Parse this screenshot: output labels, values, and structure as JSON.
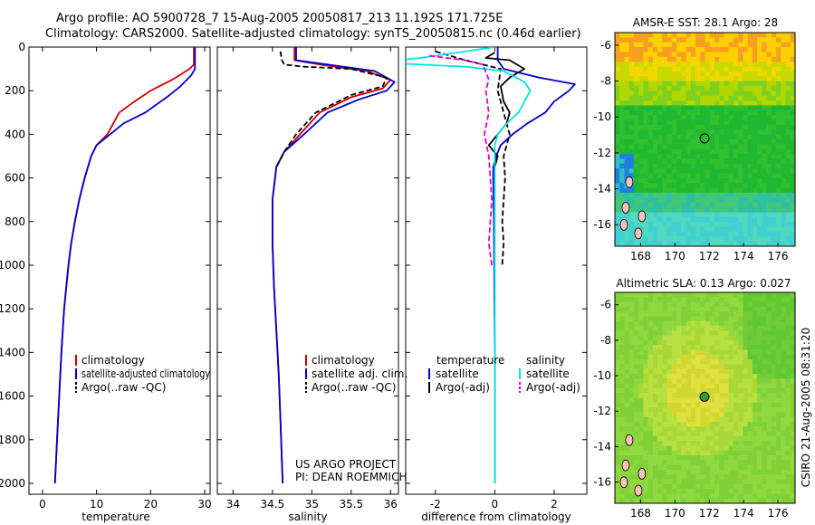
{
  "figure": {
    "title_line1": "Argo profile: AO 5900728_7 15-Aug-2005 20050817_213 11.192S 171.725E",
    "title_line2": "Climatology: CARS2000. Satellite-adjusted climatology: synTS_20050815.nc (0.46d earlier)",
    "side_label": "CSIRO 21-Aug-2005 08:31:20",
    "project_line1": "US ARGO PROJECT",
    "project_line2": "PI: DEAN ROEMMICH"
  },
  "colors": {
    "climatology": "#cc0000",
    "satellite": "#0000cc",
    "argo": "#000000",
    "salinity_satellite": "#00e5e5",
    "salinity_argo": "#dd00dd",
    "map_marker": "#000000"
  },
  "chart_data": [
    {
      "type": "line",
      "panel": "temperature",
      "xlabel": "temperature",
      "ylabel": "",
      "xlim": [
        -2.5,
        31
      ],
      "ylim": [
        2050,
        0
      ],
      "xticks": [
        0,
        10,
        20,
        30
      ],
      "yticks": [
        0,
        200,
        400,
        600,
        800,
        1000,
        1200,
        1400,
        1600,
        1800,
        2000
      ],
      "legend_position": "lower-center",
      "series": [
        {
          "name": "climatology",
          "color_key": "climatology",
          "style": "solid",
          "points": [
            [
              28.0,
              0
            ],
            [
              28.0,
              40
            ],
            [
              28.0,
              80
            ],
            [
              27.2,
              100
            ],
            [
              24.0,
              150
            ],
            [
              20.0,
              200
            ],
            [
              17.0,
              250
            ],
            [
              14.2,
              300
            ],
            [
              12.0,
              400
            ],
            [
              10.0,
              450
            ],
            [
              9.0,
              500
            ],
            [
              7.8,
              600
            ],
            [
              6.8,
              700
            ],
            [
              6.0,
              800
            ],
            [
              5.3,
              900
            ],
            [
              4.8,
              1000
            ],
            [
              4.0,
              1200
            ],
            [
              3.5,
              1400
            ],
            [
              3.1,
              1600
            ],
            [
              2.7,
              1800
            ],
            [
              2.3,
              2000
            ]
          ]
        },
        {
          "name": "satellite-adjusted climatology",
          "color_key": "satellite",
          "style": "solid",
          "points": [
            [
              28.2,
              0
            ],
            [
              28.2,
              50
            ],
            [
              28.2,
              100
            ],
            [
              27.5,
              130
            ],
            [
              25.5,
              180
            ],
            [
              23.0,
              230
            ],
            [
              19.0,
              300
            ],
            [
              15.0,
              350
            ],
            [
              12.5,
              400
            ],
            [
              10.0,
              450
            ],
            [
              9.0,
              500
            ],
            [
              7.8,
              600
            ],
            [
              6.8,
              700
            ],
            [
              6.0,
              800
            ],
            [
              5.3,
              900
            ],
            [
              4.8,
              1000
            ],
            [
              4.0,
              1200
            ],
            [
              3.5,
              1400
            ],
            [
              3.1,
              1600
            ],
            [
              2.7,
              1800
            ],
            [
              2.3,
              2000
            ]
          ]
        },
        {
          "name": "Argo(..raw -QC)",
          "color_key": "argo",
          "style": "dashed",
          "points": []
        }
      ]
    },
    {
      "type": "line",
      "panel": "salinity",
      "xlabel": "salinity",
      "ylabel": "",
      "xlim": [
        33.8,
        36.1
      ],
      "ylim": [
        2050,
        0
      ],
      "xticks": [
        34,
        34.5,
        35,
        35.5,
        36
      ],
      "legend_position": "lower-center",
      "series": [
        {
          "name": "climatology",
          "color_key": "climatology",
          "style": "solid",
          "points": [
            [
              34.78,
              0
            ],
            [
              34.78,
              60
            ],
            [
              35.1,
              80
            ],
            [
              35.7,
              110
            ],
            [
              36.0,
              150
            ],
            [
              35.9,
              190
            ],
            [
              35.5,
              230
            ],
            [
              35.1,
              300
            ],
            [
              34.85,
              400
            ],
            [
              34.65,
              480
            ],
            [
              34.55,
              550
            ],
            [
              34.5,
              700
            ],
            [
              34.5,
              900
            ],
            [
              34.52,
              1100
            ],
            [
              34.55,
              1300
            ],
            [
              34.58,
              1500
            ],
            [
              34.6,
              1700
            ],
            [
              34.62,
              1900
            ],
            [
              34.63,
              2000
            ]
          ]
        },
        {
          "name": "satellite adj. clim.",
          "color_key": "satellite",
          "style": "solid",
          "points": [
            [
              34.8,
              0
            ],
            [
              34.8,
              60
            ],
            [
              35.2,
              80
            ],
            [
              35.8,
              110
            ],
            [
              36.05,
              160
            ],
            [
              35.95,
              200
            ],
            [
              35.6,
              240
            ],
            [
              35.2,
              300
            ],
            [
              34.9,
              400
            ],
            [
              34.65,
              480
            ],
            [
              34.55,
              550
            ],
            [
              34.5,
              700
            ],
            [
              34.5,
              900
            ],
            [
              34.52,
              1100
            ],
            [
              34.55,
              1300
            ],
            [
              34.58,
              1500
            ],
            [
              34.6,
              1700
            ],
            [
              34.62,
              1900
            ],
            [
              34.63,
              2000
            ]
          ]
        },
        {
          "name": "Argo(..raw -QC)",
          "color_key": "argo",
          "style": "dashed",
          "points": [
            [
              34.6,
              20
            ],
            [
              34.62,
              60
            ],
            [
              34.65,
              80
            ],
            [
              34.9,
              90
            ],
            [
              35.5,
              100
            ],
            [
              35.95,
              140
            ],
            [
              35.9,
              180
            ],
            [
              35.5,
              220
            ],
            [
              35.05,
              300
            ],
            [
              34.8,
              400
            ],
            [
              34.65,
              480
            ],
            [
              34.55,
              550
            ]
          ]
        }
      ]
    },
    {
      "type": "line",
      "panel": "difference",
      "xlabel": "difference from climatology",
      "ylabel": "",
      "xlim": [
        -3.0,
        3.1
      ],
      "ylim": [
        2050,
        0
      ],
      "xticks": [
        -2,
        0,
        2
      ],
      "legend_groups": [
        {
          "heading": "temperature",
          "entries": [
            "satellite",
            "Argo(-adj)"
          ]
        },
        {
          "heading": "salinity",
          "entries": [
            "satellite",
            "Argo(-adj)"
          ]
        }
      ],
      "series": [
        {
          "name": "temperature satellite",
          "color_key": "satellite",
          "style": "solid",
          "points": [
            [
              0.1,
              0
            ],
            [
              0.1,
              60
            ],
            [
              0.3,
              100
            ],
            [
              1.5,
              140
            ],
            [
              2.7,
              170
            ],
            [
              2.5,
              200
            ],
            [
              2.0,
              250
            ],
            [
              1.7,
              300
            ],
            [
              1.1,
              350
            ],
            [
              0.6,
              400
            ],
            [
              0.2,
              450
            ],
            [
              0.05,
              500
            ],
            [
              -0.05,
              550
            ],
            [
              -0.05,
              600
            ],
            [
              -0.03,
              800
            ],
            [
              -0.02,
              1000
            ],
            [
              -0.01,
              1200
            ],
            [
              0,
              1400
            ],
            [
              0,
              1600
            ],
            [
              0,
              1800
            ],
            [
              0,
              2000
            ]
          ]
        },
        {
          "name": "temperature Argo(-adj)",
          "color_key": "argo",
          "style": "solid",
          "points": [
            [
              0.0,
              25
            ],
            [
              -0.3,
              50
            ],
            [
              0.5,
              60
            ],
            [
              1.0,
              100
            ],
            [
              0.5,
              140
            ],
            [
              0.2,
              180
            ],
            [
              0.3,
              250
            ],
            [
              0.5,
              300
            ],
            [
              0.4,
              350
            ],
            [
              0.1,
              400
            ],
            [
              -0.2,
              450
            ],
            [
              0.1,
              500
            ],
            [
              0.0,
              550
            ]
          ]
        },
        {
          "name": "Argo dashed",
          "color_key": "argo",
          "style": "dashed",
          "points": [
            [
              -2.0,
              20
            ],
            [
              -1.0,
              60
            ],
            [
              0.2,
              100
            ],
            [
              0.1,
              200
            ],
            [
              0.3,
              300
            ],
            [
              0.5,
              400
            ],
            [
              0.3,
              500
            ],
            [
              0.35,
              600
            ],
            [
              0.3,
              700
            ],
            [
              0.25,
              800
            ],
            [
              0.3,
              900
            ],
            [
              0.25,
              1000
            ]
          ]
        },
        {
          "name": "salinity satellite",
          "color_key": "salinity_satellite",
          "style": "solid",
          "points": [
            [
              0.0,
              0
            ],
            [
              -2.5,
              50
            ],
            [
              -4.0,
              70
            ],
            [
              -1.0,
              90
            ],
            [
              0.3,
              110
            ],
            [
              1.0,
              160
            ],
            [
              1.2,
              200
            ],
            [
              1.0,
              250
            ],
            [
              0.8,
              300
            ],
            [
              0.4,
              350
            ],
            [
              0.1,
              400
            ],
            [
              0.0,
              450
            ],
            [
              0.0,
              600
            ],
            [
              0.0,
              1000
            ],
            [
              0.0,
              1400
            ],
            [
              0.0,
              1800
            ],
            [
              0.0,
              2000
            ]
          ]
        },
        {
          "name": "salinity Argo(-adj)",
          "color_key": "salinity_argo",
          "style": "dashed",
          "points": [
            [
              -2.2,
              40
            ],
            [
              -1.0,
              60
            ],
            [
              -0.4,
              80
            ],
            [
              -0.2,
              150
            ],
            [
              -0.3,
              200
            ],
            [
              -0.2,
              300
            ],
            [
              -0.35,
              400
            ],
            [
              -0.2,
              500
            ],
            [
              -0.1,
              700
            ],
            [
              -0.2,
              900
            ],
            [
              -0.1,
              1000
            ]
          ]
        }
      ]
    },
    {
      "type": "heatmap",
      "panel": "map-top",
      "title": "AMSR-E SST: 28.1 Argo: 28",
      "xlim": [
        166.5,
        177
      ],
      "ylim": [
        -17.2,
        -5.3
      ],
      "xticks": [
        168,
        170,
        172,
        174,
        176
      ],
      "yticks": [
        -6,
        -8,
        -10,
        -12,
        -14,
        -16
      ],
      "marker": {
        "lon": 171.725,
        "lat": -11.192,
        "style": "open-circle"
      }
    },
    {
      "type": "heatmap",
      "panel": "map-bottom",
      "title": "Altimetric SLA: 0.13 Argo: 0.027",
      "xlim": [
        166.5,
        177
      ],
      "ylim": [
        -17.2,
        -5.3
      ],
      "xticks": [
        168,
        170,
        172,
        174,
        176
      ],
      "yticks": [
        -6,
        -8,
        -10,
        -12,
        -14,
        -16
      ],
      "marker": {
        "lon": 171.725,
        "lat": -11.192,
        "style": "filled-circle"
      }
    }
  ]
}
